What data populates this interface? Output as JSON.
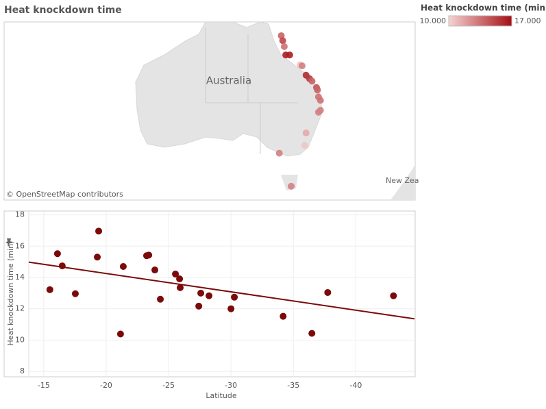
{
  "chart_data": [
    {
      "type": "map",
      "title": "Heat knockdown time",
      "legend_title": "Heat knockdown time (min)",
      "color_ticks": [
        {
          "value": 10,
          "label": "10.000"
        },
        {
          "value": 17,
          "label": "17.000"
        }
      ],
      "colors": [
        "#f6d3d3",
        "#a50f15"
      ],
      "annotations": [
        "Australia",
        "New Zea",
        "© OpenStreetMap contributors"
      ],
      "xlim": [
        89.2,
        172.1
      ],
      "ylim": [
        -46.4,
        -10.3
      ],
      "x": [
        145.1,
        145.4,
        145.7,
        146.0,
        146.8,
        148.9,
        149.3,
        150.1,
        150.8,
        151.3,
        152.2,
        152.4,
        152.6,
        153.0,
        153.0,
        152.6,
        150.1,
        149.8,
        144.7,
        147.1
      ],
      "lat": [
        -13.1,
        -14.1,
        -15.3,
        -17.0,
        -17.0,
        -19.0,
        -19.2,
        -21.1,
        -21.8,
        -22.3,
        -23.6,
        -24.1,
        -25.5,
        -26.2,
        -28.2,
        -28.6,
        -32.8,
        -35.3,
        -36.9,
        -43.6
      ],
      "values": [
        14,
        15,
        13.5,
        16.5,
        16.5,
        10.5,
        13,
        16,
        15.5,
        14,
        14.5,
        14,
        13.5,
        13.5,
        13,
        13,
        11.5,
        10.5,
        13,
        13
      ]
    },
    {
      "type": "scatter",
      "x_label": "Latitude",
      "y_label": "Heat knockdown time (min)",
      "color": "#7b0a0a",
      "xlim": [
        -13.8,
        -44.7
      ],
      "ylim": [
        7.7,
        18.2
      ],
      "xticks": [
        -15,
        -20,
        -25,
        -30,
        -35,
        -40
      ],
      "yticks": [
        8,
        10,
        12,
        14,
        16,
        18
      ],
      "grid": true,
      "x": [
        -15.49,
        -16.1,
        -16.48,
        -17.53,
        -19.29,
        -19.4,
        -21.15,
        -21.37,
        -23.24,
        -23.41,
        -23.9,
        -24.34,
        -25.55,
        -25.88,
        -25.93,
        -27.42,
        -27.58,
        -28.24,
        -30.0,
        -30.27,
        -34.18,
        -36.48,
        -37.75,
        -43.02
      ],
      "values": [
        13.22,
        15.52,
        14.74,
        12.96,
        15.3,
        16.96,
        10.39,
        14.7,
        15.39,
        15.43,
        14.48,
        12.61,
        14.22,
        13.91,
        13.35,
        12.17,
        13.0,
        12.83,
        12.0,
        12.74,
        11.52,
        10.43,
        13.04,
        12.83
      ],
      "trendline": {
        "x": [
          -13.8,
          -44.7
        ],
        "values": [
          14.98,
          11.36
        ]
      }
    }
  ]
}
